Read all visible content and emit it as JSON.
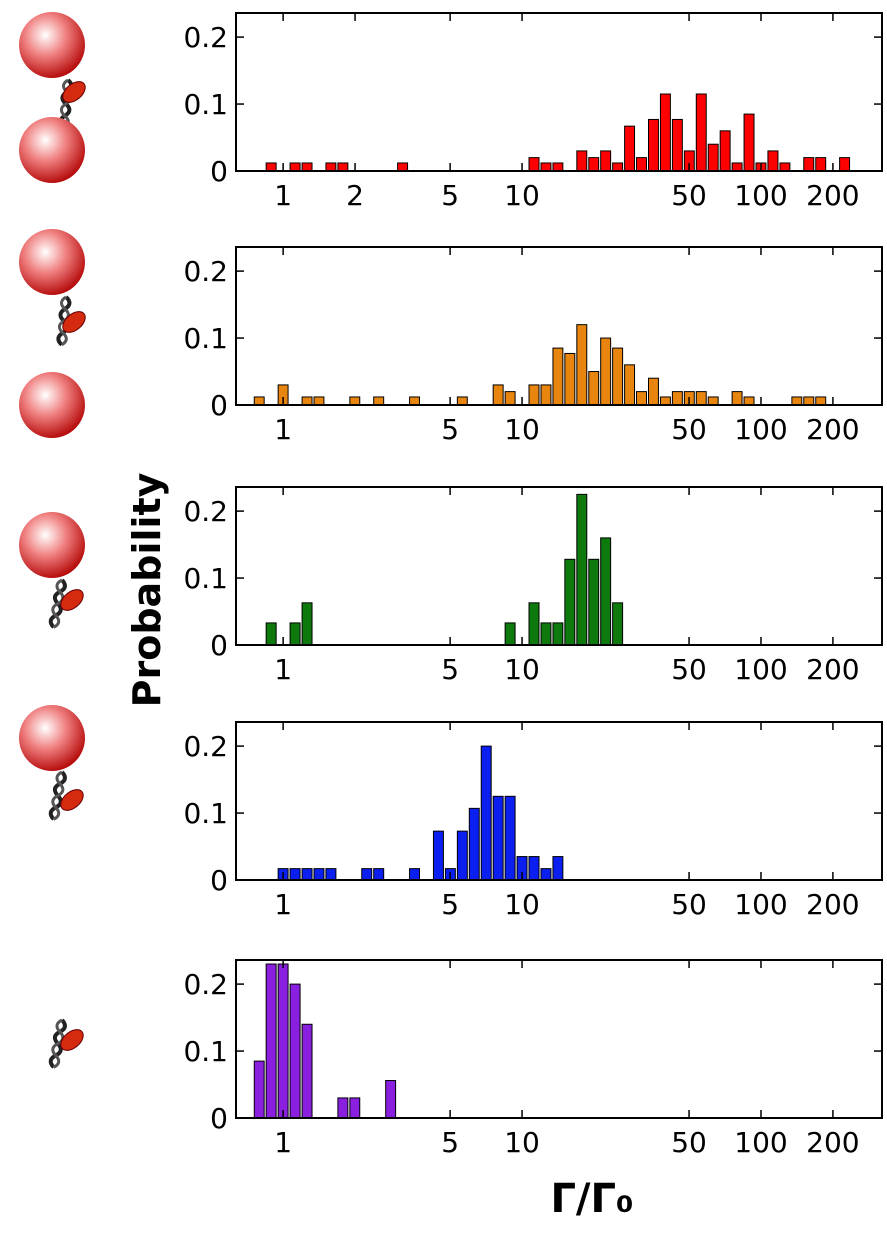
{
  "chart_data": [
    {
      "type": "histogram",
      "xscale": "log",
      "color": "#ff0000",
      "bins": [
        0.596,
        0.668,
        0.75,
        0.841,
        0.944,
        1.059,
        1.189,
        1.334,
        1.496,
        1.679,
        1.884,
        2.113,
        2.371,
        2.661,
        2.985,
        3.35,
        3.758,
        4.217,
        4.732,
        5.309,
        5.957,
        6.683,
        7.499,
        8.414,
        9.441,
        10.59,
        11.89,
        13.34,
        14.96,
        16.79,
        18.84,
        21.13,
        23.71,
        26.61,
        29.85,
        33.5,
        37.58,
        42.17,
        47.32,
        53.09,
        59.57,
        66.83,
        74.99,
        84.14,
        94.41,
        105.9,
        118.9,
        133.4,
        149.6,
        167.9,
        188.4,
        211.3,
        237.1,
        266.1
      ],
      "counts": [
        0,
        0,
        0,
        0.012,
        0,
        0.012,
        0.012,
        0,
        0.012,
        0.012,
        0,
        0,
        0,
        0,
        0.012,
        0,
        0,
        0,
        0,
        0,
        0,
        0,
        0,
        0,
        0,
        0.02,
        0.012,
        0.012,
        0,
        0.03,
        0.02,
        0.03,
        0.012,
        0.067,
        0.02,
        0.077,
        0.115,
        0.077,
        0.03,
        0.115,
        0.04,
        0.06,
        0.012,
        0.085,
        0.012,
        0.03,
        0.012,
        0,
        0.02,
        0.02,
        0,
        0.02,
        0
      ],
      "xlim": [
        0.635,
        321
      ],
      "xticks": [
        1,
        2,
        5,
        10,
        50,
        100,
        200
      ],
      "ylim": [
        0,
        0.236
      ],
      "yticks": [
        0,
        0.1,
        0.2
      ]
    },
    {
      "type": "histogram",
      "xscale": "log",
      "color": "#e8850e",
      "bins": [
        0.596,
        0.668,
        0.75,
        0.841,
        0.944,
        1.059,
        1.189,
        1.334,
        1.496,
        1.679,
        1.884,
        2.113,
        2.371,
        2.661,
        2.985,
        3.35,
        3.758,
        4.217,
        4.732,
        5.309,
        5.957,
        6.683,
        7.499,
        8.414,
        9.441,
        10.59,
        11.89,
        13.34,
        14.96,
        16.79,
        18.84,
        21.13,
        23.71,
        26.61,
        29.85,
        33.5,
        37.58,
        42.17,
        47.32,
        53.09,
        59.57,
        66.83,
        74.99,
        84.14,
        94.41,
        105.9,
        118.9,
        133.4,
        149.6,
        167.9,
        188.4,
        211.3,
        237.1,
        266.1
      ],
      "counts": [
        0,
        0,
        0.012,
        0,
        0.03,
        0,
        0.012,
        0.012,
        0,
        0,
        0.012,
        0,
        0.012,
        0,
        0,
        0.012,
        0,
        0,
        0,
        0.012,
        0,
        0,
        0.03,
        0.02,
        0,
        0.03,
        0.03,
        0.085,
        0.077,
        0.12,
        0.05,
        0.1,
        0.085,
        0.06,
        0.02,
        0.04,
        0.012,
        0.02,
        0.02,
        0.02,
        0.012,
        0,
        0.02,
        0.012,
        0,
        0,
        0,
        0.012,
        0.012,
        0.012,
        0,
        0,
        0
      ],
      "xlim": [
        0.635,
        321
      ],
      "xticks": [
        1,
        5,
        10,
        50,
        100,
        200
      ],
      "ylim": [
        0,
        0.236
      ],
      "yticks": [
        0,
        0.1,
        0.2
      ]
    },
    {
      "type": "histogram",
      "xscale": "log",
      "color": "#0e7a0e",
      "ylabel": "Probability",
      "bins": [
        0.596,
        0.668,
        0.75,
        0.841,
        0.944,
        1.059,
        1.189,
        1.334,
        1.496,
        1.679,
        1.884,
        2.113,
        2.371,
        2.661,
        2.985,
        3.35,
        3.758,
        4.217,
        4.732,
        5.309,
        5.957,
        6.683,
        7.499,
        8.414,
        9.441,
        10.59,
        11.89,
        13.34,
        14.96,
        16.79,
        18.84,
        21.13,
        23.71,
        26.61,
        29.85,
        33.5,
        37.58,
        42.17,
        47.32,
        53.09,
        59.57,
        66.83,
        74.99,
        84.14,
        94.41,
        105.9,
        118.9,
        133.4,
        149.6,
        167.9,
        188.4,
        211.3,
        237.1,
        266.1
      ],
      "counts": [
        0,
        0,
        0,
        0.033,
        0,
        0.033,
        0.063,
        0,
        0,
        0,
        0,
        0,
        0,
        0,
        0,
        0,
        0,
        0,
        0,
        0,
        0,
        0,
        0,
        0.033,
        0,
        0.063,
        0.033,
        0.033,
        0.128,
        0.225,
        0.128,
        0.16,
        0.063,
        0,
        0,
        0,
        0,
        0,
        0,
        0,
        0,
        0,
        0,
        0,
        0,
        0,
        0,
        0,
        0,
        0,
        0,
        0,
        0
      ],
      "xlim": [
        0.635,
        321
      ],
      "xticks": [
        1,
        5,
        10,
        50,
        100,
        200
      ],
      "ylim": [
        0,
        0.236
      ],
      "yticks": [
        0,
        0.1,
        0.2
      ]
    },
    {
      "type": "histogram",
      "xscale": "log",
      "color": "#0a1ff0",
      "bins": [
        0.596,
        0.668,
        0.75,
        0.841,
        0.944,
        1.059,
        1.189,
        1.334,
        1.496,
        1.679,
        1.884,
        2.113,
        2.371,
        2.661,
        2.985,
        3.35,
        3.758,
        4.217,
        4.732,
        5.309,
        5.957,
        6.683,
        7.499,
        8.414,
        9.441,
        10.59,
        11.89,
        13.34,
        14.96,
        16.79,
        18.84,
        21.13,
        23.71,
        26.61,
        29.85,
        33.5,
        37.58,
        42.17,
        47.32,
        53.09,
        59.57,
        66.83,
        74.99,
        84.14,
        94.41,
        105.9,
        118.9,
        133.4,
        149.6,
        167.9,
        188.4,
        211.3,
        237.1,
        266.1
      ],
      "counts": [
        0,
        0,
        0,
        0,
        0.017,
        0.017,
        0.017,
        0.017,
        0.017,
        0,
        0,
        0.017,
        0.017,
        0,
        0,
        0.017,
        0,
        0.073,
        0.017,
        0.073,
        0.107,
        0.2,
        0.125,
        0.125,
        0.035,
        0.035,
        0.017,
        0.035,
        0,
        0,
        0,
        0,
        0,
        0,
        0,
        0,
        0,
        0,
        0,
        0,
        0,
        0,
        0,
        0,
        0,
        0,
        0,
        0,
        0,
        0,
        0,
        0,
        0
      ],
      "xlim": [
        0.635,
        321
      ],
      "xticks": [
        1,
        5,
        10,
        50,
        100,
        200
      ],
      "ylim": [
        0,
        0.236
      ],
      "yticks": [
        0,
        0.1,
        0.2
      ]
    },
    {
      "type": "histogram",
      "xscale": "log",
      "color": "#8a1fe0",
      "xlabel": "Γ/Γ₀",
      "bins": [
        0.596,
        0.668,
        0.75,
        0.841,
        0.944,
        1.059,
        1.189,
        1.334,
        1.496,
        1.679,
        1.884,
        2.113,
        2.371,
        2.661,
        2.985,
        3.35,
        3.758,
        4.217,
        4.732,
        5.309,
        5.957,
        6.683,
        7.499,
        8.414,
        9.441,
        10.59,
        11.89,
        13.34,
        14.96,
        16.79,
        18.84,
        21.13,
        23.71,
        26.61,
        29.85,
        33.5,
        37.58,
        42.17,
        47.32,
        53.09,
        59.57,
        66.83,
        74.99,
        84.14,
        94.41,
        105.9,
        118.9,
        133.4,
        149.6,
        167.9,
        188.4,
        211.3,
        237.1,
        266.1
      ],
      "counts": [
        0,
        0,
        0.085,
        0.23,
        0.23,
        0.2,
        0.14,
        0,
        0,
        0.03,
        0.03,
        0,
        0,
        0.056,
        0,
        0,
        0,
        0,
        0,
        0,
        0,
        0,
        0,
        0,
        0,
        0,
        0,
        0,
        0,
        0,
        0,
        0,
        0,
        0,
        0,
        0,
        0,
        0,
        0,
        0,
        0,
        0,
        0,
        0,
        0,
        0,
        0,
        0,
        0,
        0,
        0,
        0,
        0
      ],
      "xlim": [
        0.635,
        321
      ],
      "xticks": [
        1,
        5,
        10,
        50,
        100,
        200
      ],
      "ylim": [
        0,
        0.236
      ],
      "yticks": [
        0,
        0.1,
        0.2
      ]
    }
  ]
}
